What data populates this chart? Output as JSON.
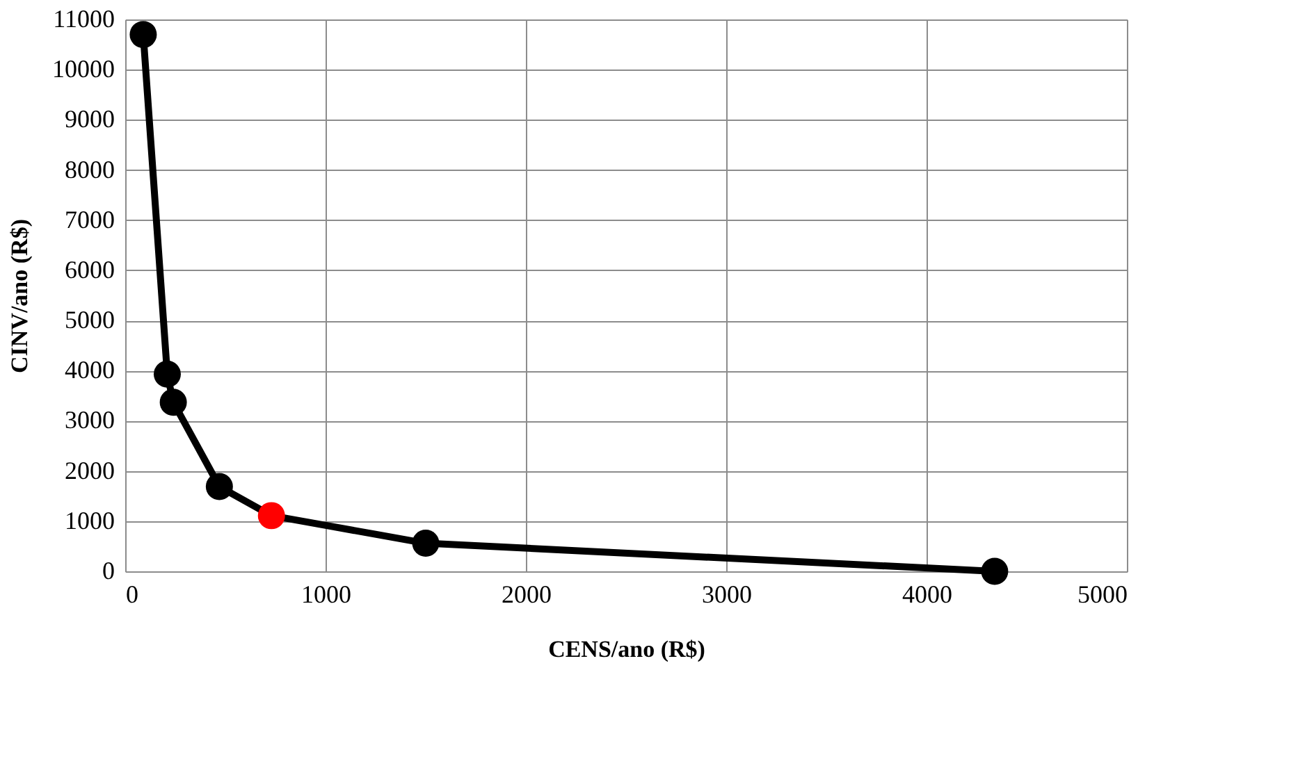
{
  "chart_data": {
    "type": "line",
    "xlabel": "CENS/ano (R$)",
    "ylabel": "CINV/ano (R$)",
    "x": [
      90,
      210,
      240,
      470,
      730,
      1500,
      4340
    ],
    "series": [
      {
        "color": "#000000",
        "values": [
          10700,
          3930,
          3370,
          1690,
          1110,
          560,
          0
        ],
        "colors": [
          "#000000",
          "#000000",
          "#000000",
          "#000000",
          "#ff0000",
          "#000000",
          "#000000"
        ]
      }
    ],
    "xlim": [
      0,
      5000
    ],
    "xticks": [
      0,
      1000,
      2000,
      3000,
      4000,
      5000
    ],
    "ylim": [
      0,
      11000
    ],
    "yticks": [
      0,
      1000,
      2000,
      3000,
      4000,
      5000,
      6000,
      7000,
      8000,
      9000,
      10000,
      11000
    ],
    "grid": true,
    "marker": "circle",
    "line_style": "solid"
  }
}
